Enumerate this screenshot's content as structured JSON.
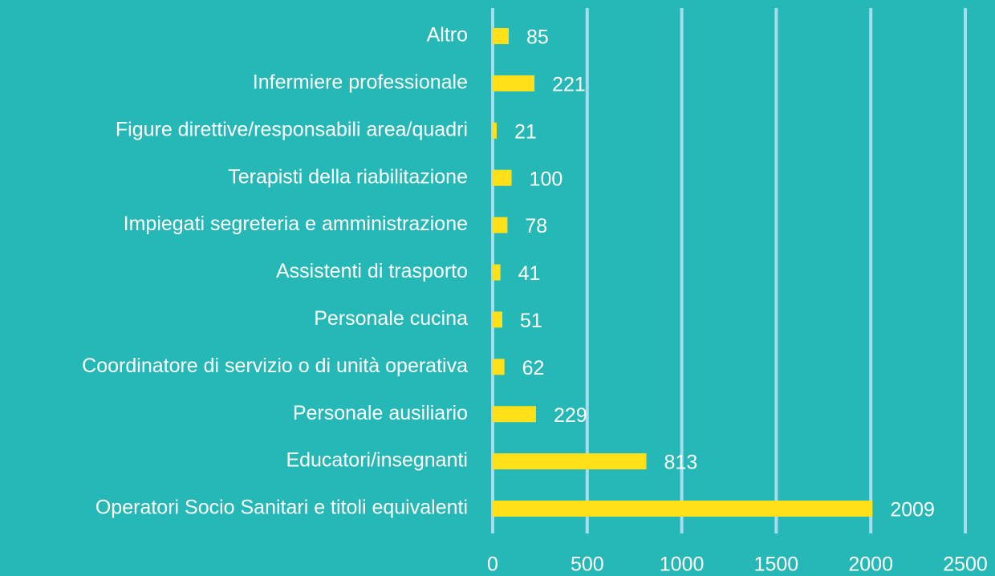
{
  "chart_data": {
    "type": "bar",
    "categories": [
      "Altro",
      "Infermiere professionale",
      "Figure direttive/responsabili area/quadri",
      "Terapisti della riabilitazione",
      "Impiegati segreteria e amministrazione",
      "Assistenti di trasporto",
      "Personale cucina",
      "Coordinatore di servizio o di unità operativa",
      "Personale ausiliario",
      "Educatori/insegnanti",
      "Operatori Socio Sanitari e titoli equivalenti"
    ],
    "values": [
      85,
      221,
      21,
      100,
      78,
      41,
      51,
      62,
      229,
      813,
      2009
    ],
    "color": "#ffe019",
    "xlim": [
      0,
      2500
    ],
    "xticks": [
      0,
      500,
      1000,
      1500,
      2000,
      2500
    ],
    "grid": true
  }
}
